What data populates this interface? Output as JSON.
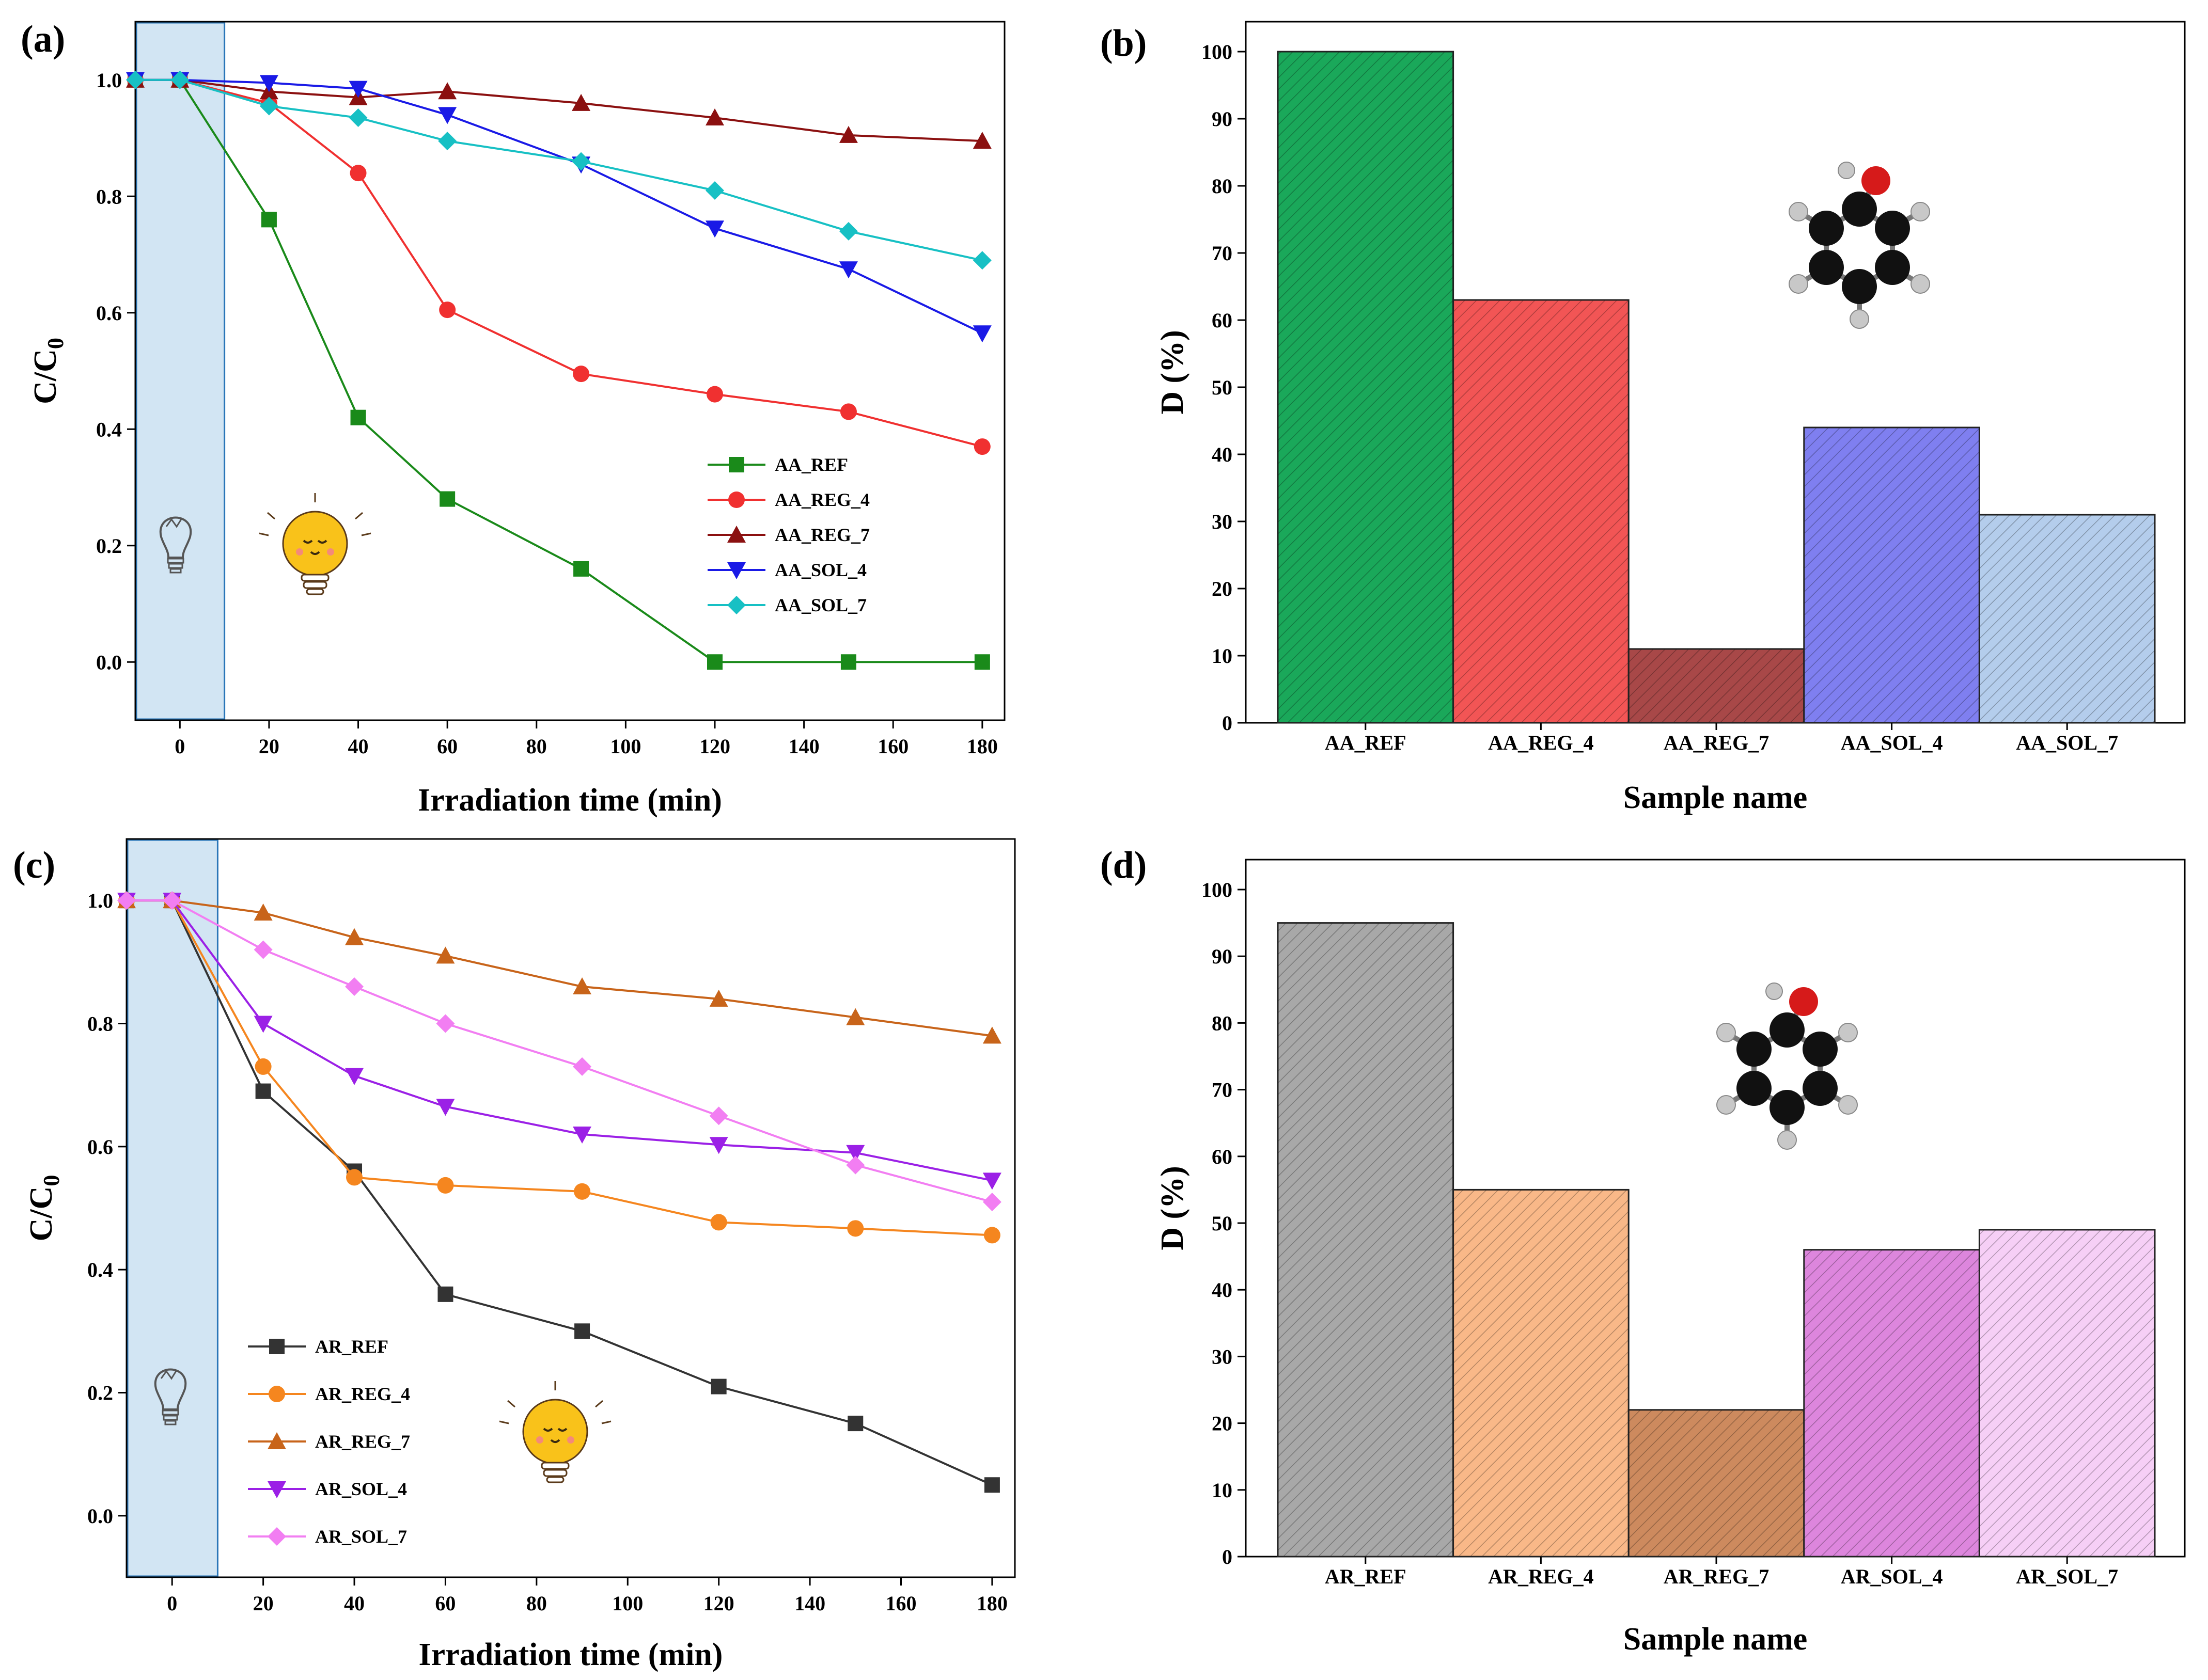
{
  "panels": [
    {
      "id": "a",
      "label": "(a)",
      "xlabel": "Irradiation time (min)",
      "ylabel_main": "C/C",
      "ylabel_sub": "0",
      "xlim": [
        -10,
        185
      ],
      "ylim": [
        -0.1,
        1.1
      ],
      "xticks": [
        "0",
        "20",
        "40",
        "60",
        "80",
        "100",
        "120",
        "140",
        "160",
        "180"
      ],
      "yticks": [
        "0.0",
        "0.2",
        "0.4",
        "0.6",
        "0.8",
        "1.0"
      ],
      "dark_region": [
        -10,
        10
      ]
    },
    {
      "id": "b",
      "label": "(b)",
      "xlabel": "Sample name",
      "ylabel": "D (%)",
      "ylim": [
        0,
        100
      ],
      "yticks": [
        "0",
        "10",
        "20",
        "30",
        "40",
        "50",
        "60",
        "70",
        "80",
        "90",
        "100"
      ]
    },
    {
      "id": "c",
      "label": "(c)",
      "xlabel": "Irradiation time (min)",
      "ylabel_main": "C/C",
      "ylabel_sub": "0",
      "xlim": [
        -10,
        185
      ],
      "ylim": [
        -0.1,
        1.1
      ],
      "xticks": [
        "0",
        "20",
        "40",
        "60",
        "80",
        "100",
        "120",
        "140",
        "160",
        "180"
      ],
      "yticks": [
        "0.0",
        "0.2",
        "0.4",
        "0.6",
        "0.8",
        "1.0"
      ],
      "dark_region": [
        -10,
        10
      ]
    },
    {
      "id": "d",
      "label": "(d)",
      "xlabel": "Sample name",
      "ylabel": "D (%)",
      "ylim": [
        0,
        100
      ],
      "yticks": [
        "0",
        "10",
        "20",
        "30",
        "40",
        "50",
        "60",
        "70",
        "80",
        "90",
        "100"
      ]
    }
  ],
  "chart_data": [
    {
      "panel": "a",
      "type": "line",
      "x": [
        -10,
        0,
        20,
        40,
        60,
        90,
        120,
        150,
        180
      ],
      "series": [
        {
          "name": "AA_REF",
          "color": "#1a8a1a",
          "marker": "square",
          "values": [
            1.0,
            1.0,
            0.76,
            0.42,
            0.28,
            0.16,
            0.0,
            0.0,
            0.0
          ]
        },
        {
          "name": "AA_REG_4",
          "color": "#f03030",
          "marker": "circle",
          "values": [
            1.0,
            1.0,
            0.96,
            0.84,
            0.605,
            0.495,
            0.46,
            0.43,
            0.37
          ]
        },
        {
          "name": "AA_REG_7",
          "color": "#8b1010",
          "marker": "triangle-up",
          "values": [
            1.0,
            1.0,
            0.98,
            0.97,
            0.98,
            0.96,
            0.935,
            0.905,
            0.895
          ]
        },
        {
          "name": "AA_SOL_4",
          "color": "#1a1ae6",
          "marker": "triangle-down",
          "values": [
            1.0,
            1.0,
            0.995,
            0.985,
            0.94,
            0.855,
            0.745,
            0.675,
            0.565
          ]
        },
        {
          "name": "AA_SOL_7",
          "color": "#17c0c4",
          "marker": "diamond",
          "values": [
            1.0,
            1.0,
            0.955,
            0.935,
            0.895,
            0.86,
            0.81,
            0.74,
            0.69
          ]
        }
      ]
    },
    {
      "panel": "b",
      "type": "bar",
      "categories": [
        "AA_REF",
        "AA_REG_4",
        "AA_REG_7",
        "AA_SOL_4",
        "AA_SOL_7"
      ],
      "values": [
        100,
        63,
        11,
        44,
        31
      ],
      "colors": [
        "#1aa85a",
        "#f25555",
        "#a84848",
        "#7f7ff0",
        "#b4cdec"
      ]
    },
    {
      "panel": "c",
      "type": "line",
      "x": [
        -10,
        0,
        20,
        40,
        60,
        90,
        120,
        150,
        180
      ],
      "series": [
        {
          "name": "AR_REF",
          "color": "#333333",
          "marker": "square",
          "values": [
            1.0,
            1.0,
            0.69,
            0.56,
            0.36,
            0.3,
            0.21,
            0.15,
            0.05
          ]
        },
        {
          "name": "AR_REG_4",
          "color": "#f5861f",
          "marker": "circle",
          "values": [
            1.0,
            1.0,
            0.73,
            0.55,
            0.537,
            0.527,
            0.477,
            0.467,
            0.456
          ]
        },
        {
          "name": "AR_REG_7",
          "color": "#c8641a",
          "marker": "triangle-up",
          "values": [
            1.0,
            1.0,
            0.98,
            0.94,
            0.91,
            0.86,
            0.84,
            0.81,
            0.78
          ]
        },
        {
          "name": "AR_SOL_4",
          "color": "#9b20e6",
          "marker": "triangle-down",
          "values": [
            1.0,
            1.0,
            0.8,
            0.715,
            0.665,
            0.62,
            0.603,
            0.59,
            0.545
          ]
        },
        {
          "name": "AR_SOL_7",
          "color": "#f27ef2",
          "marker": "diamond",
          "values": [
            1.0,
            1.0,
            0.92,
            0.86,
            0.8,
            0.73,
            0.65,
            0.57,
            0.51
          ]
        }
      ]
    },
    {
      "panel": "d",
      "type": "bar",
      "categories": [
        "AR_REF",
        "AR_REG_4",
        "AR_REG_7",
        "AR_SOL_4",
        "AR_SOL_7"
      ],
      "values": [
        95,
        55,
        22,
        46,
        49
      ],
      "colors": [
        "#a8a8a8",
        "#f9b888",
        "#cd8a5e",
        "#dd86dd",
        "#f6cff6"
      ]
    }
  ]
}
